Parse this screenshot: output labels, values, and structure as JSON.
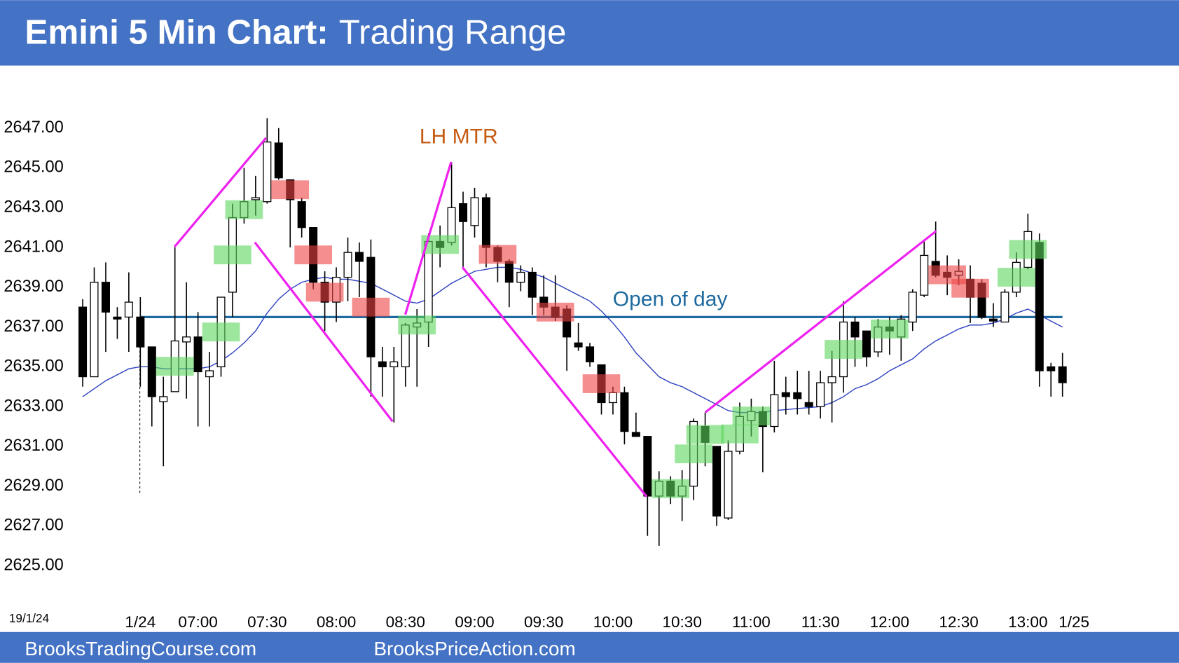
{
  "chart_data": {
    "type": "candlestick",
    "title": "Emini 5 Min Chart:",
    "subtitle": "Trading Range",
    "date_label": "19/1/24",
    "footer_left": "BrooksTradingCourse.com",
    "footer_right": "BrooksPriceAction.com",
    "annotations": {
      "pattern": "LH MTR",
      "open_line_label": "Open of day"
    },
    "open_of_day": 2637.5,
    "categories": [
      null,
      null,
      null,
      null,
      null,
      "1/24",
      null,
      null,
      null,
      null,
      "07:00",
      null,
      null,
      null,
      null,
      null,
      "07:30",
      null,
      null,
      null,
      null,
      null,
      "08:00",
      null,
      null,
      null,
      null,
      null,
      "08:30",
      null,
      null,
      null,
      null,
      null,
      "09:00",
      null,
      null,
      null,
      null,
      null,
      "09:30",
      null,
      null,
      null,
      null,
      null,
      "10:00",
      null,
      null,
      null,
      null,
      null,
      "10:30",
      null,
      null,
      null,
      null,
      null,
      "11:00",
      null,
      null,
      null,
      null,
      null,
      "11:30",
      null,
      null,
      null,
      null,
      null,
      "12:00",
      null,
      null,
      null,
      null,
      null,
      "12:30",
      null,
      null,
      null,
      null,
      null,
      "13:00",
      null,
      null,
      null,
      "1/25"
    ],
    "open": [
      2638.0,
      2634.5,
      2639.25,
      2637.5,
      2637.5,
      2637.5,
      2636,
      2633.25,
      2633.75,
      2636.25,
      2636.5,
      2634.5,
      2635,
      2638.75,
      2642.5,
      2643.4,
      2643.3,
      2646.25,
      2644.4,
      2643.3,
      2642,
      2639.25,
      2638.25,
      2639.5,
      2640.75,
      2640.5,
      2635.25,
      2635,
      2635,
      2637,
      2637.25,
      2641.3,
      2641.25,
      2643.2,
      2642.1,
      2643.5,
      2641,
      2640.3,
      2639.25,
      2639.75,
      2638.5,
      2638,
      2637.9,
      2636.2,
      2636,
      2635.1,
      2633.2,
      2633.7,
      2631.7,
      2631.5,
      2628.5,
      2629.25,
      2628.5,
      2629,
      2632,
      2631,
      2627.4,
      2630.75,
      2632.3,
      2632.75,
      2632,
      2633.7,
      2633.7,
      2633.2,
      2633,
      2634.2,
      2634.5,
      2637.25,
      2636.8,
      2635.75,
      2637,
      2636.5,
      2637.25,
      2638.6,
      2640.3,
      2639.75,
      2639.6,
      2639.4,
      2639.2,
      2637.4,
      2637.25,
      2638.75,
      2640,
      2641.25,
      2635,
      2635,
      null
    ],
    "high": [
      2638.4,
      2640,
      2640.25,
      2638,
      2639.75,
      2638.5,
      2636,
      2634.5,
      2641,
      2639.25,
      2637.75,
      2635.75,
      2638.5,
      2643.2,
      2645,
      2644.6,
      2647.5,
      2647,
      2644.4,
      2643.5,
      2642,
      2639.8,
      2640,
      2641.5,
      2641.25,
      2641.4,
      2636,
      2636,
      2637.2,
      2637.9,
      2641.7,
      2642.1,
      2645.3,
      2643.8,
      2644,
      2643.7,
      2641.1,
      2640.4,
      2640.1,
      2640,
      2639.6,
      2639.6,
      2638.1,
      2637.2,
      2636.2,
      2635.1,
      2634,
      2634,
      2632.7,
      2631.5,
      2629.75,
      2629.5,
      2629.8,
      2632.4,
      2632.7,
      2631,
      2631.3,
      2633.2,
      2633.4,
      2633,
      2635.3,
      2634.5,
      2634.8,
      2634.8,
      2634.8,
      2635.8,
      2638.3,
      2637.5,
      2636.8,
      2637.4,
      2637.5,
      2637.6,
      2638.9,
      2641.4,
      2642.3,
      2640.6,
      2640.4,
      2640.1,
      2639.4,
      2638.2,
      2638.9,
      2640.75,
      2642.7,
      2641.7,
      2635.2,
      2635.7,
      null
    ],
    "low": [
      2634.0,
      2634.5,
      2635.75,
      2636.4,
      2635.75,
      2634,
      2632,
      2630,
      2633.75,
      2633.4,
      2632,
      2632,
      2634.5,
      2637.5,
      2642.2,
      2642.6,
      2643.2,
      2644.4,
      2641,
      2641.5,
      2638.9,
      2636.8,
      2637.25,
      2638.3,
      2638.5,
      2633.5,
      2633.5,
      2632.2,
      2634,
      2634,
      2636,
      2640,
      2641.1,
      2640,
      2641.5,
      2640,
      2639.25,
      2638,
      2638.8,
      2637.6,
      2637.6,
      2637.3,
      2634.8,
      2635.8,
      2635,
      2632.6,
      2632.6,
      2631.1,
      2631.5,
      2626.5,
      2626,
      2628.1,
      2627.25,
      2628.3,
      2630,
      2627,
      2627.3,
      2630.6,
      2631.5,
      2629.7,
      2631.7,
      2632.6,
      2632.6,
      2632.6,
      2632.4,
      2632.2,
      2633.7,
      2635,
      2635,
      2635.5,
      2635.6,
      2635.3,
      2636.8,
      2638.5,
      2639.5,
      2638.6,
      2639.1,
      2637.2,
      2637.4,
      2637,
      2637.25,
      2638.5,
      2639.9,
      2634,
      2633.5,
      2633.5,
      null
    ],
    "close": [
      2634.5,
      2639.25,
      2637.75,
      2637.4,
      2638.25,
      2636,
      2633.5,
      2633.5,
      2636.3,
      2636.5,
      2634.75,
      2634.8,
      2638.5,
      2642.5,
      2643.3,
      2643.5,
      2646.3,
      2644.5,
      2643.4,
      2642,
      2639.25,
      2638.25,
      2639.5,
      2640.75,
      2640.3,
      2635.5,
      2635,
      2635.25,
      2637.1,
      2637.2,
      2641.3,
      2641,
      2643,
      2642.3,
      2643.5,
      2641,
      2640.3,
      2639.25,
      2639.75,
      2638.5,
      2638,
      2637.5,
      2636.5,
      2636,
      2635.25,
      2633.2,
      2633.7,
      2631.75,
      2631.5,
      2628.5,
      2629.25,
      2628.5,
      2629,
      2632.25,
      2631.2,
      2627.5,
      2630.75,
      2632.5,
      2632.75,
      2632,
      2633.6,
      2633.5,
      2633.4,
      2633,
      2634.2,
      2634.5,
      2637.25,
      2636.5,
      2635.5,
      2637,
      2636.8,
      2637.4,
      2638.75,
      2640.6,
      2639.6,
      2639.5,
      2639.8,
      2638.5,
      2637.5,
      2637.3,
      2638.75,
      2640.25,
      2641.8,
      2634.8,
      2634.8,
      2634.2,
      null
    ],
    "ema": [
      2633.5,
      2633.9,
      2634.3,
      2634.6,
      2634.9,
      2635.0,
      2635.0,
      2634.9,
      2634.9,
      2634.9,
      2634.9,
      2635.0,
      2635.3,
      2635.7,
      2636.2,
      2636.8,
      2637.7,
      2638.4,
      2638.9,
      2639.25,
      2639.4,
      2639.5,
      2639.4,
      2639.4,
      2639.3,
      2639.2,
      2638.9,
      2638.6,
      2638.3,
      2638.2,
      2638.4,
      2638.8,
      2639.2,
      2639.5,
      2639.8,
      2639.9,
      2640.0,
      2640.0,
      2639.9,
      2639.7,
      2639.5,
      2639.2,
      2638.9,
      2638.6,
      2638.3,
      2637.8,
      2637.2,
      2636.5,
      2635.7,
      2635.1,
      2634.5,
      2634.2,
      2634.0,
      2633.7,
      2633.4,
      2633.1,
      2632.8,
      2632.7,
      2632.7,
      2632.7,
      2632.8,
      2632.85,
      2632.9,
      2632.95,
      2633.0,
      2633.2,
      2633.5,
      2633.9,
      2634.1,
      2634.4,
      2634.8,
      2635.1,
      2635.4,
      2635.9,
      2636.3,
      2636.6,
      2636.9,
      2637.1,
      2637.1,
      2637.2,
      2637.4,
      2637.7,
      2637.9,
      2637.6,
      2637.3,
      2637.0,
      null
    ],
    "ema_color": "#2b3fbf",
    "open_line_color": "#1f6a9f",
    "bull_signal_bars": [
      8,
      12,
      13,
      14,
      29,
      31,
      51,
      53,
      54,
      57,
      58,
      66,
      70,
      81,
      82
    ],
    "bear_signal_bars": [
      18,
      20,
      21,
      25,
      36,
      41,
      45,
      75,
      77
    ],
    "bull_color": "#5cd65c",
    "bear_color": "#ee4444",
    "ylim": [
      2623.18,
      2649.65
    ],
    "yticks": [
      {
        "value": 2647,
        "label": "2647.00"
      },
      {
        "value": 2645,
        "label": "2645.00"
      },
      {
        "value": 2643,
        "label": "2643.00"
      },
      {
        "value": 2641,
        "label": "2641.00"
      },
      {
        "value": 2639,
        "label": "2639.00"
      },
      {
        "value": 2637,
        "label": "2637.00"
      },
      {
        "value": 2635,
        "label": "2635.00"
      },
      {
        "value": 2633,
        "label": "2633.00"
      },
      {
        "value": 2631,
        "label": "2631.00"
      },
      {
        "value": 2629,
        "label": "2629.00"
      },
      {
        "value": 2627,
        "label": "2627.00"
      },
      {
        "value": 2625,
        "label": "2625.00"
      }
    ],
    "grid": false
  }
}
